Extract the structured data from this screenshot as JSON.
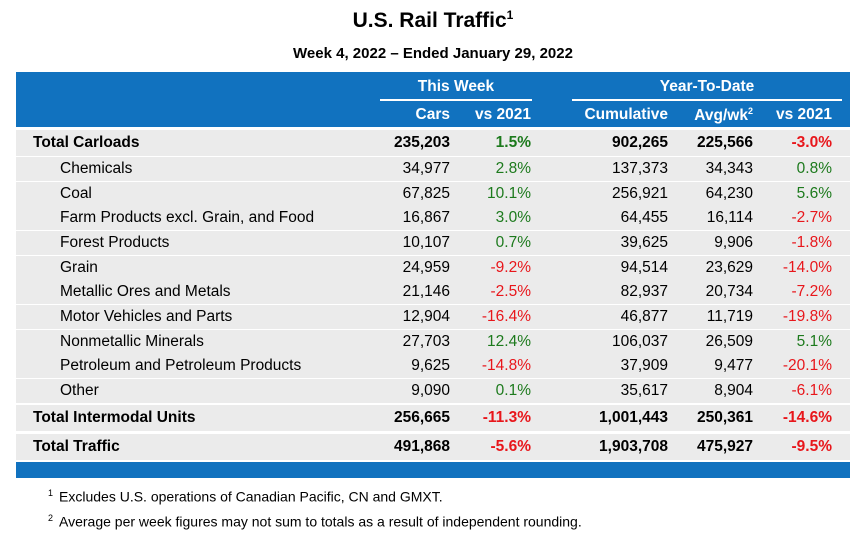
{
  "title": "U.S. Rail Traffic",
  "title_sup": "1",
  "subtitle": "Week 4, 2022 – Ended January 29, 2022",
  "header": {
    "this_week": "This Week",
    "ytd": "Year-To-Date",
    "cars": "Cars",
    "vs1": "vs 2021",
    "cumulative": "Cumulative",
    "avg": "Avg/wk",
    "avg_sup": "2",
    "vs2": "vs 2021"
  },
  "colors": {
    "header_bg": "#1172bf",
    "positive": "#1d7a1d",
    "negative": "#e8161b",
    "row_bg": "#ebebeb"
  },
  "rows": [
    {
      "label": "Total Carloads",
      "total": true,
      "cars": "235,203",
      "vs": "1.5%",
      "cum": "902,265",
      "avg": "225,566",
      "vs_ytd": "-3.0%"
    },
    {
      "label": "Chemicals",
      "cars": "34,977",
      "vs": "2.8%",
      "cum": "137,373",
      "avg": "34,343",
      "vs_ytd": "0.8%"
    },
    {
      "label": "Coal",
      "cars": "67,825",
      "vs": "10.1%",
      "cum": "256,921",
      "avg": "64,230",
      "vs_ytd": "5.6%"
    },
    {
      "label": "Farm Products excl. Grain, and Food",
      "cars": "16,867",
      "vs": "3.0%",
      "cum": "64,455",
      "avg": "16,114",
      "vs_ytd": "-2.7%"
    },
    {
      "label": "Forest Products",
      "cars": "10,107",
      "vs": "0.7%",
      "cum": "39,625",
      "avg": "9,906",
      "vs_ytd": "-1.8%"
    },
    {
      "label": "Grain",
      "cars": "24,959",
      "vs": "-9.2%",
      "cum": "94,514",
      "avg": "23,629",
      "vs_ytd": "-14.0%"
    },
    {
      "label": "Metallic Ores and Metals",
      "cars": "21,146",
      "vs": "-2.5%",
      "cum": "82,937",
      "avg": "20,734",
      "vs_ytd": "-7.2%"
    },
    {
      "label": "Motor Vehicles and Parts",
      "cars": "12,904",
      "vs": "-16.4%",
      "cum": "46,877",
      "avg": "11,719",
      "vs_ytd": "-19.8%"
    },
    {
      "label": "Nonmetallic Minerals",
      "cars": "27,703",
      "vs": "12.4%",
      "cum": "106,037",
      "avg": "26,509",
      "vs_ytd": "5.1%"
    },
    {
      "label": "Petroleum and Petroleum Products",
      "cars": "9,625",
      "vs": "-14.8%",
      "cum": "37,909",
      "avg": "9,477",
      "vs_ytd": "-20.1%"
    },
    {
      "label": "Other",
      "cars": "9,090",
      "vs": "0.1%",
      "cum": "35,617",
      "avg": "8,904",
      "vs_ytd": "-6.1%"
    },
    {
      "label": "Total Intermodal Units",
      "total": true,
      "cars": "256,665",
      "vs": "-11.3%",
      "cum": "1,001,443",
      "avg": "250,361",
      "vs_ytd": "-14.6%"
    },
    {
      "label": "Total Traffic",
      "total": true,
      "cars": "491,868",
      "vs": "-5.6%",
      "cum": "1,903,708",
      "avg": "475,927",
      "vs_ytd": "-9.5%"
    }
  ],
  "notes": [
    {
      "sup": "1",
      "text": "Excludes U.S. operations of Canadian Pacific, CN and GMXT."
    },
    {
      "sup": "2",
      "text": "Average per week figures may not sum to totals as a result of independent rounding."
    }
  ]
}
